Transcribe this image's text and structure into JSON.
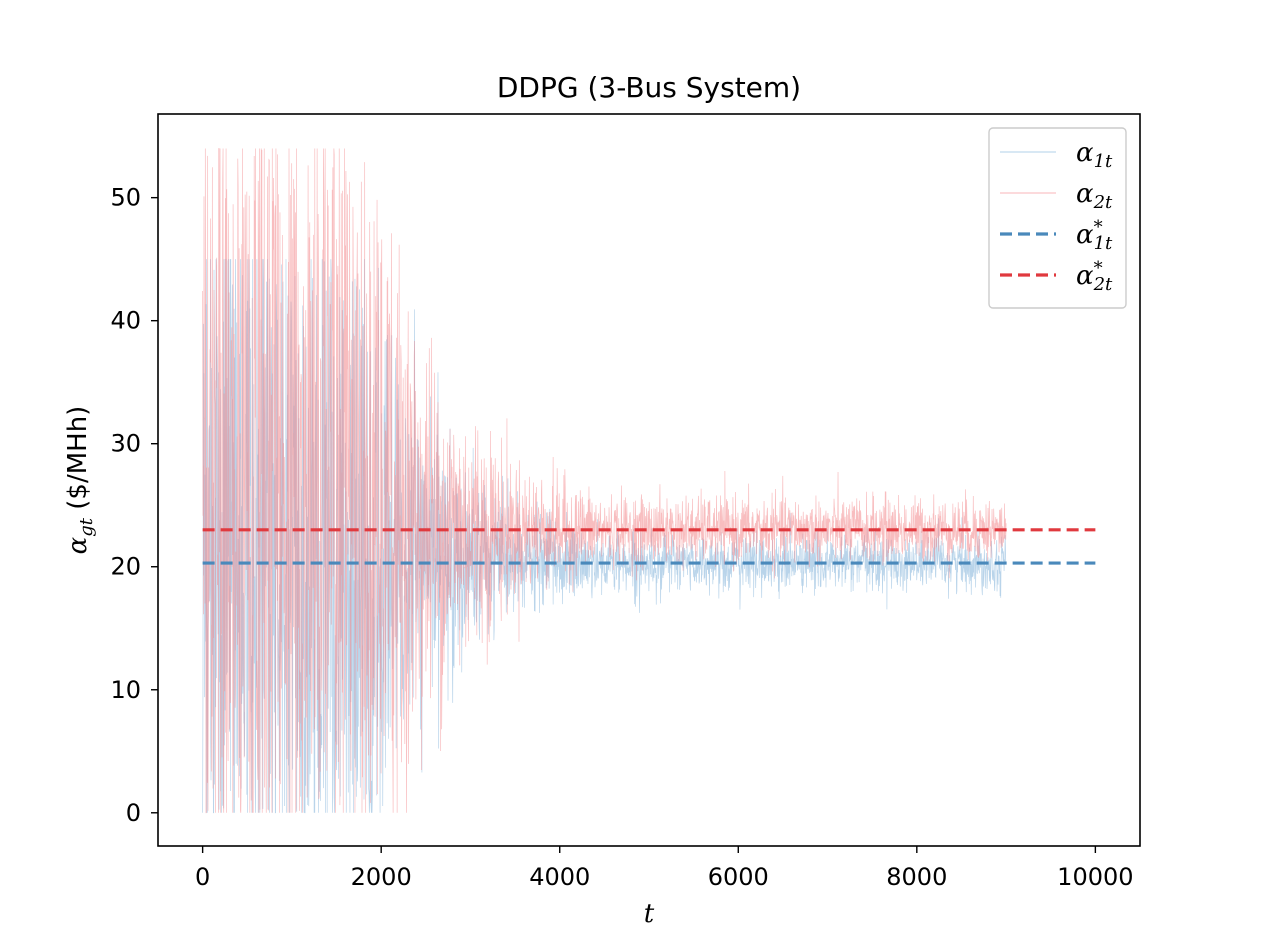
{
  "chart_data": {
    "type": "line",
    "title": "DDPG (3-Bus System)",
    "xlabel": "t",
    "ylabel": "α_gt ($/MHh)",
    "ylabel_symbol": "α",
    "ylabel_sub": "gt",
    "ylabel_unit": " ($/MHh)",
    "xlim": [
      -500,
      10500
    ],
    "ylim": [
      -2.7,
      56.8
    ],
    "xticks": [
      0,
      2000,
      4000,
      6000,
      8000,
      10000
    ],
    "yticks": [
      0,
      10,
      20,
      30,
      40,
      50
    ],
    "grid": false,
    "legend_placement": "top-right",
    "series": [
      {
        "name": "α_1t",
        "symbol": "α",
        "sub": "1t",
        "star": false,
        "color": "#7fb0d8",
        "style": "noisy",
        "x_range": [
          0,
          9000
        ],
        "target": 20.3,
        "clip": [
          0,
          45
        ],
        "band_profile": [
          [
            0,
            45
          ],
          [
            1500,
            30
          ],
          [
            2500,
            10
          ],
          [
            3500,
            4
          ],
          [
            4500,
            2.2
          ],
          [
            9000,
            2.0
          ]
        ]
      },
      {
        "name": "α_2t",
        "symbol": "α",
        "sub": "2t",
        "star": false,
        "color": "#f3868b",
        "style": "noisy",
        "x_range": [
          0,
          9000
        ],
        "target": 23.0,
        "clip": [
          0,
          54
        ],
        "band_profile": [
          [
            0,
            54
          ],
          [
            1500,
            30
          ],
          [
            2500,
            14
          ],
          [
            3500,
            5
          ],
          [
            4500,
            2.5
          ],
          [
            9000,
            2.3
          ]
        ]
      },
      {
        "name": "α*_1t",
        "symbol": "α",
        "sub": "1t",
        "star": true,
        "color": "#4a89bb",
        "style": "dashed",
        "x": [
          0,
          10000
        ],
        "values": [
          20.3,
          20.3
        ]
      },
      {
        "name": "α*_2t",
        "symbol": "α",
        "sub": "2t",
        "star": true,
        "color": "#e0393e",
        "style": "dashed",
        "x": [
          0,
          10000
        ],
        "values": [
          23.0,
          23.0
        ]
      }
    ]
  }
}
